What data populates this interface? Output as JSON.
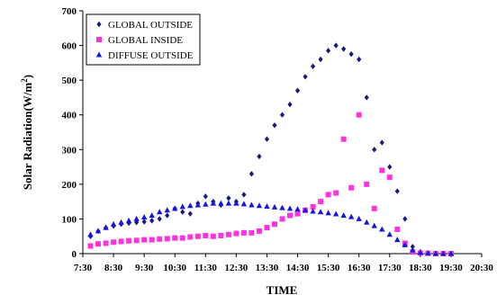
{
  "chart_data": {
    "type": "scatter",
    "title": "",
    "xlabel": "TIME",
    "ylabel": "Solar Radiation(W/m",
    "ylabel_superscript": "2",
    "ylabel_suffix": ")",
    "xlim": [
      "7:30",
      "20:30"
    ],
    "ylim": [
      0,
      700
    ],
    "x_ticks": [
      "7:30",
      "8:30",
      "9:30",
      "10:30",
      "11:30",
      "12:30",
      "13:30",
      "14:30",
      "15:30",
      "16:30",
      "17:30",
      "18:30",
      "19:30",
      "20:30"
    ],
    "y_ticks": [
      0,
      100,
      200,
      300,
      400,
      500,
      600,
      700
    ],
    "grid": false,
    "legend_position": "top-left",
    "series": [
      {
        "name": "GLOBAL OUTSIDE",
        "marker": "diamond",
        "color": "#1a1a7e",
        "points": [
          [
            "7:45",
            50
          ],
          [
            "8:00",
            65
          ],
          [
            "8:15",
            75
          ],
          [
            "8:30",
            80
          ],
          [
            "8:45",
            85
          ],
          [
            "9:00",
            88
          ],
          [
            "9:15",
            90
          ],
          [
            "9:30",
            92
          ],
          [
            "9:45",
            95
          ],
          [
            "10:00",
            100
          ],
          [
            "10:15",
            110
          ],
          [
            "10:30",
            130
          ],
          [
            "10:45",
            120
          ],
          [
            "11:00",
            115
          ],
          [
            "11:15",
            145
          ],
          [
            "11:30",
            165
          ],
          [
            "11:45",
            150
          ],
          [
            "12:00",
            140
          ],
          [
            "12:15",
            160
          ],
          [
            "12:30",
            150
          ],
          [
            "12:45",
            170
          ],
          [
            "13:00",
            230
          ],
          [
            "13:15",
            280
          ],
          [
            "13:30",
            330
          ],
          [
            "13:45",
            370
          ],
          [
            "14:00",
            400
          ],
          [
            "14:15",
            430
          ],
          [
            "14:30",
            470
          ],
          [
            "14:45",
            510
          ],
          [
            "15:00",
            540
          ],
          [
            "15:15",
            560
          ],
          [
            "15:30",
            585
          ],
          [
            "15:45",
            600
          ],
          [
            "16:00",
            590
          ],
          [
            "16:15",
            575
          ],
          [
            "16:30",
            560
          ],
          [
            "16:45",
            450
          ],
          [
            "17:00",
            300
          ],
          [
            "17:15",
            320
          ],
          [
            "17:30",
            250
          ],
          [
            "17:45",
            180
          ],
          [
            "18:00",
            100
          ],
          [
            "18:15",
            20
          ],
          [
            "18:30",
            5
          ],
          [
            "18:45",
            2
          ],
          [
            "19:00",
            1
          ],
          [
            "19:15",
            0
          ],
          [
            "19:30",
            0
          ]
        ]
      },
      {
        "name": "GLOBAL INSIDE",
        "marker": "square",
        "color": "#ff33dd",
        "points": [
          [
            "7:45",
            22
          ],
          [
            "8:00",
            28
          ],
          [
            "8:15",
            30
          ],
          [
            "8:30",
            33
          ],
          [
            "8:45",
            35
          ],
          [
            "9:00",
            37
          ],
          [
            "9:15",
            38
          ],
          [
            "9:30",
            40
          ],
          [
            "9:45",
            40
          ],
          [
            "10:00",
            42
          ],
          [
            "10:15",
            43
          ],
          [
            "10:30",
            45
          ],
          [
            "10:45",
            45
          ],
          [
            "11:00",
            48
          ],
          [
            "11:15",
            50
          ],
          [
            "11:30",
            52
          ],
          [
            "11:45",
            50
          ],
          [
            "12:00",
            52
          ],
          [
            "12:15",
            55
          ],
          [
            "12:30",
            58
          ],
          [
            "12:45",
            60
          ],
          [
            "13:00",
            60
          ],
          [
            "13:15",
            65
          ],
          [
            "13:30",
            75
          ],
          [
            "13:45",
            85
          ],
          [
            "14:00",
            100
          ],
          [
            "14:15",
            110
          ],
          [
            "14:30",
            115
          ],
          [
            "14:45",
            125
          ],
          [
            "15:00",
            135
          ],
          [
            "15:15",
            150
          ],
          [
            "15:30",
            170
          ],
          [
            "15:45",
            175
          ],
          [
            "16:00",
            330
          ],
          [
            "16:15",
            190
          ],
          [
            "16:30",
            400
          ],
          [
            "16:45",
            200
          ],
          [
            "17:00",
            130
          ],
          [
            "17:15",
            240
          ],
          [
            "17:30",
            220
          ],
          [
            "17:45",
            70
          ],
          [
            "18:00",
            30
          ],
          [
            "18:15",
            5
          ],
          [
            "18:30",
            2
          ],
          [
            "18:45",
            1
          ],
          [
            "19:00",
            0
          ],
          [
            "19:15",
            0
          ],
          [
            "19:30",
            0
          ]
        ]
      },
      {
        "name": "DIFFUSE OUTSIDE",
        "marker": "triangle",
        "color": "#1515e6",
        "points": [
          [
            "7:45",
            55
          ],
          [
            "8:00",
            65
          ],
          [
            "8:15",
            75
          ],
          [
            "8:30",
            85
          ],
          [
            "8:45",
            90
          ],
          [
            "9:00",
            95
          ],
          [
            "9:15",
            100
          ],
          [
            "9:30",
            105
          ],
          [
            "9:45",
            110
          ],
          [
            "10:00",
            120
          ],
          [
            "10:15",
            125
          ],
          [
            "10:30",
            130
          ],
          [
            "10:45",
            135
          ],
          [
            "11:00",
            138
          ],
          [
            "11:15",
            140
          ],
          [
            "11:30",
            142
          ],
          [
            "11:45",
            145
          ],
          [
            "12:00",
            145
          ],
          [
            "12:15",
            145
          ],
          [
            "12:30",
            145
          ],
          [
            "12:45",
            143
          ],
          [
            "13:00",
            140
          ],
          [
            "13:15",
            138
          ],
          [
            "13:30",
            136
          ],
          [
            "13:45",
            134
          ],
          [
            "14:00",
            132
          ],
          [
            "14:15",
            130
          ],
          [
            "14:30",
            128
          ],
          [
            "14:45",
            125
          ],
          [
            "15:00",
            122
          ],
          [
            "15:15",
            120
          ],
          [
            "15:30",
            117
          ],
          [
            "15:45",
            114
          ],
          [
            "16:00",
            110
          ],
          [
            "16:15",
            106
          ],
          [
            "16:30",
            100
          ],
          [
            "16:45",
            90
          ],
          [
            "17:00",
            80
          ],
          [
            "17:15",
            70
          ],
          [
            "17:30",
            55
          ],
          [
            "17:45",
            40
          ],
          [
            "18:00",
            25
          ],
          [
            "18:15",
            10
          ],
          [
            "18:30",
            3
          ],
          [
            "18:45",
            1
          ],
          [
            "19:00",
            0
          ],
          [
            "19:15",
            0
          ],
          [
            "19:30",
            0
          ]
        ]
      }
    ]
  }
}
